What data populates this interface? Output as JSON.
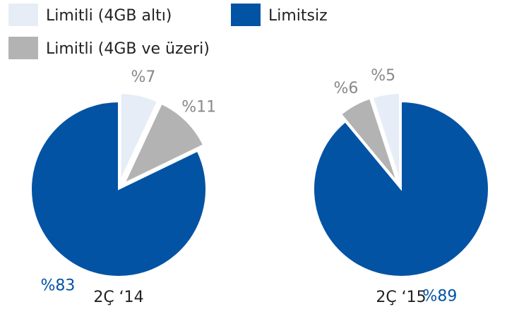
{
  "legend": {
    "items": [
      {
        "name": "Limitli (4GB altı)",
        "color": "#e6edf7"
      },
      {
        "name": "Limitli (4GB ve üzeri)",
        "color": "#b3b3b3"
      },
      {
        "name": "Limitsiz",
        "color": "#0353a4"
      }
    ]
  },
  "chart_data": [
    {
      "type": "pie",
      "title": "2Ç ‘14",
      "values": [
        7,
        11,
        83
      ],
      "value_labels": [
        "%7",
        "%11",
        "%83"
      ],
      "direction": "clockwise",
      "explode": [
        true,
        true,
        false
      ]
    },
    {
      "type": "pie",
      "title": "2Ç ‘15",
      "values": [
        5,
        6,
        89
      ],
      "value_labels": [
        "%5",
        "%6",
        "%89"
      ],
      "direction": "counterclockwise",
      "explode": [
        true,
        true,
        false
      ]
    }
  ]
}
